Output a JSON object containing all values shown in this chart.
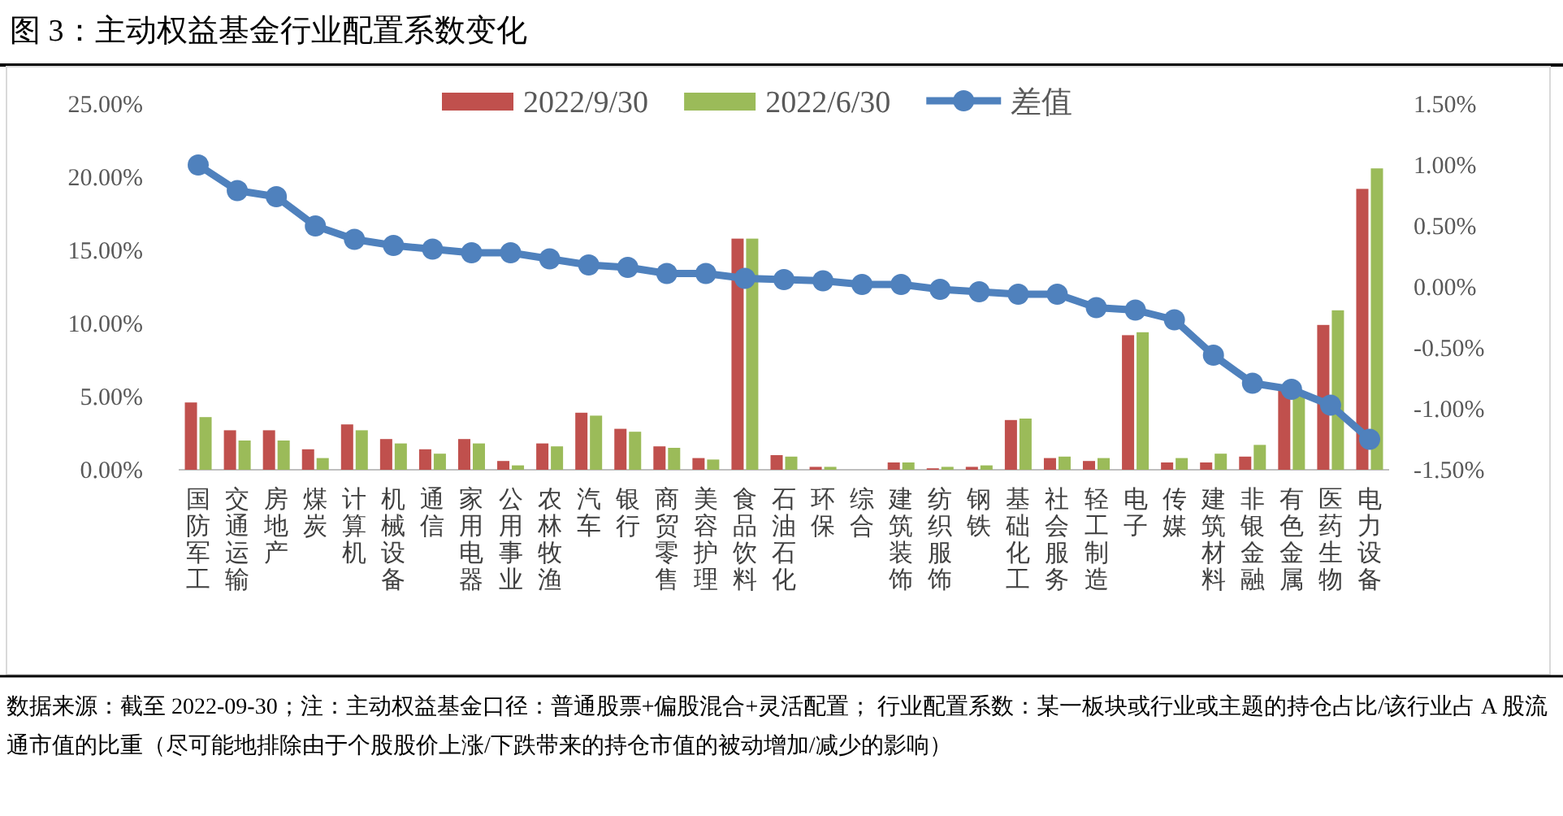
{
  "chart_data": {
    "type": "bar",
    "title": "图 3：主动权益基金行业配置系数变化",
    "categories": [
      "国防军工",
      "交通运输",
      "房地产",
      "煤炭",
      "计算机",
      "机械设备",
      "通信",
      "家用电器",
      "公用事业",
      "农林牧渔",
      "汽车",
      "银行",
      "商贸零售",
      "美容护理",
      "食品饮料",
      "石油石化",
      "环保",
      "综合",
      "建筑装饰",
      "纺织服饰",
      "钢铁",
      "基础化工",
      "社会服务",
      "轻工制造",
      "电子",
      "传媒",
      "建筑材料",
      "非银金融",
      "有色金属",
      "医药生物",
      "电力设备"
    ],
    "series": [
      {
        "name": "2022/9/30",
        "color": "#c0504d",
        "values": [
          4.6,
          2.7,
          2.7,
          1.4,
          3.1,
          2.1,
          1.4,
          2.1,
          0.6,
          1.8,
          3.9,
          2.8,
          1.6,
          0.8,
          15.8,
          1.0,
          0.2,
          0,
          0.5,
          0.1,
          0.2,
          3.4,
          0.8,
          0.6,
          9.2,
          0.5,
          0.5,
          0.9,
          5.4,
          9.9,
          19.2
        ]
      },
      {
        "name": "2022/6/30",
        "color": "#9bbb59",
        "values": [
          3.6,
          2.0,
          2.0,
          0.8,
          2.7,
          1.8,
          1.1,
          1.8,
          0.3,
          1.6,
          3.7,
          2.6,
          1.5,
          0.7,
          15.8,
          0.9,
          0.2,
          0,
          0.5,
          0.2,
          0.3,
          3.5,
          0.9,
          0.8,
          9.4,
          0.8,
          1.1,
          1.7,
          5.3,
          10.9,
          20.6
        ]
      },
      {
        "name": "差值",
        "type": "line",
        "axis": "y2",
        "color": "#4f81bd",
        "marker": "circle",
        "values": [
          1.0,
          0.79,
          0.74,
          0.5,
          0.39,
          0.34,
          0.31,
          0.28,
          0.28,
          0.23,
          0.18,
          0.16,
          0.11,
          0.11,
          0.07,
          0.06,
          0.05,
          0.02,
          0.02,
          -0.02,
          -0.04,
          -0.06,
          -0.06,
          -0.17,
          -0.19,
          -0.27,
          -0.56,
          -0.79,
          -0.84,
          -0.97,
          -1.25
        ]
      }
    ],
    "ylim": [
      0,
      25
    ],
    "yticks": [
      {
        "value": 0,
        "label": "0.00%"
      },
      {
        "value": 5,
        "label": "5.00%"
      },
      {
        "value": 10,
        "label": "10.00%"
      },
      {
        "value": 15,
        "label": "15.00%"
      },
      {
        "value": 20,
        "label": "20.00%"
      },
      {
        "value": 25,
        "label": "25.00%"
      }
    ],
    "y2lim": [
      -1.5,
      1.5
    ],
    "y2ticks": [
      {
        "value": -1.5,
        "label": "-1.50%"
      },
      {
        "value": -1,
        "label": "-1.00%"
      },
      {
        "value": -0.5,
        "label": "-0.50%"
      },
      {
        "value": 0,
        "label": "0.00%"
      },
      {
        "value": 0.5,
        "label": "0.50%"
      },
      {
        "value": 1,
        "label": "1.00%"
      },
      {
        "value": 1.5,
        "label": "1.50%"
      }
    ],
    "legend": "top",
    "grid": false,
    "annotations": [
      "数据来源：截至 2022-09-30；注：主动权益基金口径：普通股票+偏股混合+灵活配置； 行业配置系数：某一板块或行业或主题的持仓占比/该行业占 A 股流通市值的比重（尽可能地排除由于个股股价上涨/下跌带来的持仓市值的被动增加/减少的影响）"
    ]
  }
}
